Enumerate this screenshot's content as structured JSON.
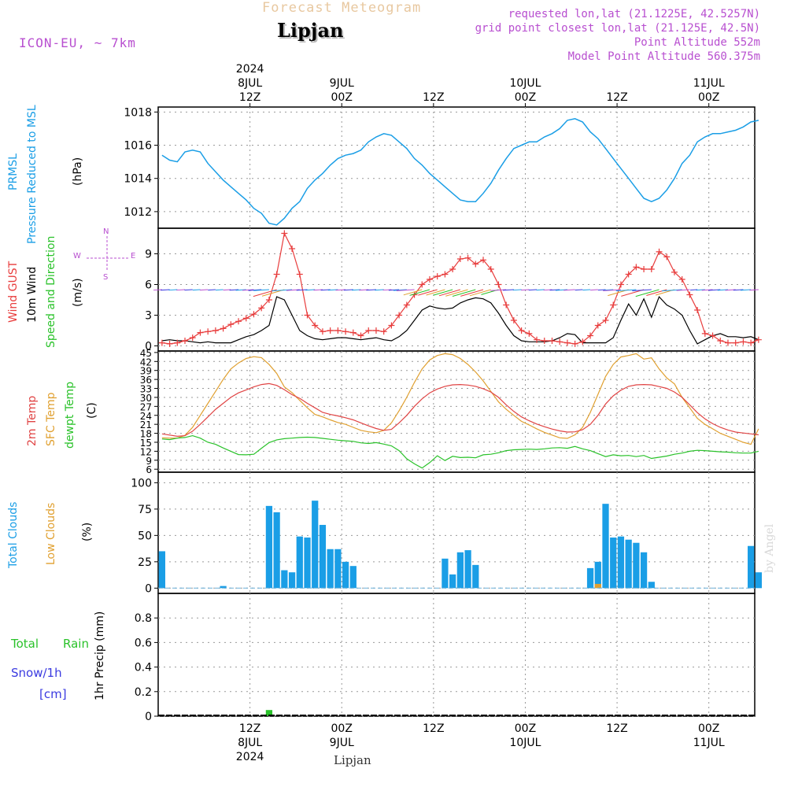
{
  "header": {
    "product": "Forecast Meteogram",
    "location": "Lipjan",
    "model": "ICON-EU, ~ 7km",
    "requested": "requested lon,lat (21.1225E, 42.5257N)",
    "closest": "grid point closest lon,lat (21.125E, 42.5N)",
    "point_alt": "Point Altitude 552m",
    "model_alt": "Model Point Altitude 560.375m",
    "watermark": "by Angel",
    "footer_location": "Lipjan"
  },
  "colors": {
    "pressure": "#1a9ee6",
    "gust": "#e83c3c",
    "wind10": "#000000",
    "direction": "#2ac22a",
    "t2m": "#e04444",
    "sfc": "#e0a030",
    "dew": "#2ac22a",
    "clouds_total": "#1a9ee6",
    "clouds_low": "#e0a030",
    "rain": "#2ac22a",
    "snow": "#3a3ae0",
    "purple": "#b84fd0"
  },
  "time_axis": {
    "top_labels": [
      {
        "hour": 0,
        "lines": [
          "2024",
          "8JUL",
          "12Z"
        ]
      },
      {
        "hour": 12,
        "lines": [
          "9JUL",
          "00Z"
        ]
      },
      {
        "hour": 24,
        "lines": [
          "12Z"
        ]
      },
      {
        "hour": 36,
        "lines": [
          "10JUL",
          "00Z"
        ]
      },
      {
        "hour": 48,
        "lines": [
          "12Z"
        ]
      },
      {
        "hour": 60,
        "lines": [
          "11JUL",
          "00Z"
        ]
      }
    ],
    "bottom_labels": [
      {
        "hour": 0,
        "lines": [
          "12Z",
          "8JUL",
          "2024"
        ]
      },
      {
        "hour": 12,
        "lines": [
          "00Z",
          "9JUL"
        ]
      },
      {
        "hour": 24,
        "lines": [
          "12Z"
        ]
      },
      {
        "hour": 36,
        "lines": [
          "00Z",
          "10JUL"
        ]
      },
      {
        "hour": 48,
        "lines": [
          "12Z"
        ]
      },
      {
        "hour": 60,
        "lines": [
          "00Z",
          "11JUL"
        ]
      }
    ]
  },
  "panels": {
    "pressure": {
      "labels": [
        "PRMSL",
        "Pressure Reduced to MSL",
        "(hPa)"
      ],
      "ylim": [
        1011,
        1018.3
      ],
      "yticks": [
        1012,
        1014,
        1016,
        1018
      ]
    },
    "wind": {
      "labels": [
        "Wind GUST",
        "10m Wind",
        "Speed and Direction",
        "(m/s)"
      ],
      "compass": {
        "n": "N",
        "s": "S",
        "w": "W",
        "e": "E"
      },
      "ylim": [
        -0.5,
        11.5
      ],
      "yticks": [
        0,
        3,
        6,
        9
      ]
    },
    "temp": {
      "labels": [
        "2m Temp",
        "SFC Temp",
        "dewpt Temp",
        "(C)"
      ],
      "ylim": [
        5,
        45.5
      ],
      "yticks": [
        6,
        9,
        12,
        15,
        18,
        21,
        24,
        27,
        30,
        33,
        36,
        39,
        42,
        45
      ]
    },
    "clouds": {
      "labels": [
        "Total Clouds",
        "Low Clouds",
        "(%)"
      ],
      "ylim": [
        -5,
        110
      ],
      "yticks": [
        0,
        25,
        50,
        75,
        100
      ]
    },
    "precip": {
      "labels": [
        "Total",
        "Rain",
        "Snow/1h",
        "[cm]",
        "1hr Precip (mm)"
      ],
      "ylim": [
        0,
        1.0
      ],
      "yticks": [
        "0",
        "0.2",
        "0.4",
        "0.6",
        "0.8"
      ]
    }
  },
  "chart_data": [
    {
      "type": "line",
      "title": "PRMSL Pressure Reduced to MSL",
      "ylabel": "(hPa)",
      "x_start_hour": -11.5,
      "x_step_hours": 1,
      "series": [
        {
          "name": "PRMSL",
          "values": [
            1015.4,
            1015.1,
            1015.0,
            1015.6,
            1015.7,
            1015.6,
            1014.9,
            1014.4,
            1013.9,
            1013.5,
            1013.1,
            1012.7,
            1012.2,
            1011.9,
            1011.3,
            1011.2,
            1011.6,
            1012.2,
            1012.6,
            1013.4,
            1013.9,
            1014.3,
            1014.8,
            1015.2,
            1015.4,
            1015.5,
            1015.7,
            1016.2,
            1016.5,
            1016.7,
            1016.6,
            1016.2,
            1015.8,
            1015.2,
            1014.8,
            1014.3,
            1013.9,
            1013.5,
            1013.1,
            1012.7,
            1012.6,
            1012.6,
            1013.1,
            1013.7,
            1014.5,
            1015.2,
            1015.8,
            1016.0,
            1016.2,
            1016.2,
            1016.5,
            1016.7,
            1017.0,
            1017.5,
            1017.6,
            1017.4,
            1016.8,
            1016.4,
            1015.8,
            1015.2,
            1014.6,
            1014.0,
            1013.4,
            1012.8,
            1012.6,
            1012.8,
            1013.3,
            1014.0,
            1014.9,
            1015.4,
            1016.2,
            1016.5,
            1016.7,
            1016.7,
            1016.8,
            1016.9,
            1017.1,
            1017.4,
            1017.5
          ]
        }
      ]
    },
    {
      "type": "line",
      "title": "Wind GUST / 10m Wind",
      "ylabel": "(m/s)",
      "x_start_hour": -11.5,
      "x_step_hours": 1,
      "series": [
        {
          "name": "Wind GUST",
          "values": [
            0.3,
            0.2,
            0.3,
            0.5,
            0.8,
            1.3,
            1.4,
            1.5,
            1.7,
            2.1,
            2.4,
            2.7,
            3.1,
            3.7,
            4.5,
            7.0,
            11.0,
            9.5,
            7.0,
            3.0,
            2.0,
            1.4,
            1.5,
            1.5,
            1.4,
            1.3,
            1.0,
            1.5,
            1.5,
            1.4,
            2.0,
            3.0,
            4.0,
            5.0,
            6.0,
            6.5,
            6.8,
            7.0,
            7.5,
            8.5,
            8.6,
            8.0,
            8.4,
            7.5,
            6.0,
            4.0,
            2.5,
            1.5,
            1.2,
            0.6,
            0.5,
            0.5,
            0.4,
            0.3,
            0.2,
            0.4,
            1.0,
            2.0,
            2.5,
            4.0,
            6.0,
            7.0,
            7.7,
            7.5,
            7.5,
            9.2,
            8.7,
            7.2,
            6.5,
            5.0,
            3.5,
            1.2,
            1.0,
            0.5,
            0.3,
            0.3,
            0.4,
            0.3,
            0.6
          ]
        },
        {
          "name": "10m Wind",
          "values": [
            0.5,
            0.6,
            0.5,
            0.5,
            0.4,
            0.3,
            0.4,
            0.3,
            0.3,
            0.3,
            0.6,
            0.9,
            1.1,
            1.5,
            2.0,
            4.8,
            4.5,
            3.0,
            1.5,
            1.0,
            0.7,
            0.6,
            0.7,
            0.8,
            0.8,
            0.7,
            0.6,
            0.7,
            0.8,
            0.6,
            0.5,
            0.9,
            1.5,
            2.5,
            3.5,
            3.9,
            3.7,
            3.6,
            3.7,
            4.2,
            4.5,
            4.7,
            4.6,
            4.2,
            3.2,
            2.0,
            1.0,
            0.5,
            0.4,
            0.4,
            0.4,
            0.5,
            0.8,
            1.2,
            1.1,
            0.3,
            0.3,
            0.3,
            0.3,
            0.8,
            2.5,
            4.1,
            3.0,
            4.6,
            2.8,
            4.8,
            4.0,
            3.6,
            3.0,
            1.5,
            0.2,
            0.6,
            1.0,
            1.2,
            0.9,
            0.9,
            0.8,
            0.9,
            0.6
          ]
        }
      ]
    },
    {
      "type": "line",
      "title": "2m Temp / SFC Temp / dewpt Temp",
      "ylabel": "(C)",
      "x_start_hour": -11.5,
      "x_step_hours": 1,
      "series": [
        {
          "name": "2m Temp",
          "values": [
            17.8,
            17.4,
            17.0,
            17.2,
            18.7,
            21.0,
            23.5,
            26.0,
            28.0,
            30.0,
            31.5,
            32.5,
            33.5,
            34.3,
            34.6,
            34.0,
            32.6,
            30.9,
            29.7,
            28.0,
            26.5,
            25.0,
            24.3,
            23.8,
            23.2,
            22.5,
            21.5,
            20.5,
            19.6,
            19.0,
            19.3,
            21.5,
            24.0,
            27.0,
            29.5,
            31.5,
            32.8,
            33.7,
            34.2,
            34.3,
            34.1,
            33.7,
            32.9,
            31.8,
            30.0,
            27.5,
            25.3,
            23.5,
            22.2,
            21.1,
            20.2,
            19.4,
            18.8,
            18.4,
            18.5,
            19.2,
            21.0,
            24.0,
            27.8,
            30.5,
            32.4,
            33.7,
            34.2,
            34.3,
            34.2,
            33.6,
            33.0,
            31.8,
            30.0,
            27.5,
            24.9,
            22.8,
            21.2,
            20.0,
            19.1,
            18.4,
            18.1,
            17.8,
            17.5
          ]
        },
        {
          "name": "SFC Temp",
          "values": [
            16.5,
            16.4,
            16.4,
            17.3,
            20.0,
            24.0,
            28.0,
            32.0,
            36.0,
            39.5,
            41.5,
            43.0,
            43.6,
            43.3,
            41.0,
            38.0,
            33.5,
            31.6,
            29.0,
            26.5,
            24.3,
            23.5,
            22.5,
            21.6,
            21.0,
            20.0,
            19.0,
            18.5,
            18.2,
            19.0,
            21.5,
            25.5,
            30.0,
            35.0,
            39.5,
            42.5,
            44.0,
            44.6,
            44.3,
            43.0,
            41.0,
            38.5,
            35.5,
            32.0,
            28.5,
            26.0,
            24.0,
            22.0,
            20.8,
            19.5,
            18.3,
            17.4,
            16.5,
            16.3,
            17.5,
            20.0,
            25.0,
            31.0,
            37.0,
            41.0,
            43.5,
            44.0,
            44.6,
            42.8,
            43.2,
            39.5,
            36.5,
            34.5,
            30.0,
            26.5,
            23.0,
            21.0,
            19.5,
            18.0,
            17.0,
            16.0,
            15.0,
            14.3,
            19.5
          ]
        },
        {
          "name": "dewpt Temp",
          "values": [
            16.1,
            15.9,
            16.4,
            16.6,
            17.2,
            16.4,
            15.0,
            14.3,
            13.1,
            12.0,
            10.9,
            10.8,
            11.0,
            13.0,
            14.9,
            15.8,
            16.2,
            16.4,
            16.6,
            16.7,
            16.6,
            16.3,
            16.0,
            15.7,
            15.5,
            15.3,
            14.8,
            14.6,
            14.9,
            14.4,
            13.8,
            12.2,
            9.5,
            7.8,
            6.4,
            8.2,
            10.5,
            8.9,
            10.3,
            9.9,
            10.0,
            9.8,
            10.8,
            11.0,
            11.5,
            12.2,
            12.5,
            12.6,
            12.7,
            12.6,
            12.8,
            13.1,
            13.2,
            13.0,
            13.6,
            12.8,
            12.2,
            11.2,
            10.2,
            10.8,
            10.5,
            10.6,
            10.2,
            10.6,
            9.6,
            10.0,
            10.4,
            11.0,
            11.4,
            12.0,
            12.3,
            12.2,
            12.0,
            11.8,
            11.7,
            11.5,
            11.4,
            11.4,
            12.0
          ]
        }
      ]
    },
    {
      "type": "bar",
      "title": "Total Clouds / Low Clouds",
      "ylabel": "(%)",
      "x_start_hour": -11.5,
      "x_step_hours": 1,
      "series": [
        {
          "name": "Total Clouds",
          "values": [
            35,
            0,
            0,
            0,
            0,
            0,
            0,
            0,
            2,
            0,
            0,
            0,
            0,
            0,
            78,
            72,
            17,
            15,
            49,
            48,
            83,
            60,
            37,
            37,
            25,
            21,
            0,
            0,
            0,
            0,
            0,
            0,
            0,
            0,
            0,
            0,
            0,
            28,
            13,
            34,
            36,
            22,
            0,
            0,
            0,
            0,
            0,
            0,
            0,
            0,
            0,
            0,
            0,
            0,
            0,
            0,
            19,
            25,
            80,
            48,
            49,
            46,
            43,
            34,
            6,
            0,
            0,
            0,
            0,
            0,
            0,
            0,
            0,
            0,
            0,
            0,
            0,
            40,
            15
          ]
        },
        {
          "name": "Low Clouds",
          "values": [
            0,
            0,
            0,
            0,
            0,
            0,
            0,
            0,
            0,
            0,
            0,
            0,
            0,
            0,
            0,
            0,
            0,
            0,
            0,
            0,
            0,
            0,
            0,
            0,
            0,
            0,
            0,
            0,
            0,
            0,
            0,
            0,
            0,
            0,
            0,
            0,
            0,
            0,
            0,
            0,
            0,
            0,
            0,
            0,
            0,
            0,
            0,
            0,
            0,
            0,
            0,
            0,
            0,
            0,
            0,
            0,
            0,
            4,
            0,
            0,
            0,
            0,
            0,
            0,
            0,
            0,
            0,
            0,
            0,
            0,
            0,
            0,
            0,
            0,
            0,
            0,
            0,
            0,
            0
          ]
        }
      ]
    },
    {
      "type": "bar",
      "title": "1hr Precip",
      "ylabel": "1hr Precip (mm)",
      "x_start_hour": -11.5,
      "x_step_hours": 1,
      "series": [
        {
          "name": "Total Rain",
          "values": [
            0,
            0,
            0,
            0,
            0,
            0,
            0,
            0,
            0,
            0,
            0,
            0,
            0,
            0,
            0.05,
            0,
            0,
            0,
            0,
            0,
            0,
            0,
            0,
            0,
            0,
            0,
            0,
            0,
            0,
            0,
            0,
            0,
            0,
            0,
            0,
            0,
            0,
            0,
            0,
            0,
            0,
            0,
            0,
            0,
            0,
            0,
            0,
            0,
            0,
            0,
            0,
            0,
            0,
            0,
            0,
            0,
            0,
            0,
            0,
            0,
            0,
            0,
            0,
            0,
            0,
            0,
            0,
            0,
            0,
            0,
            0,
            0,
            0,
            0,
            0,
            0,
            0,
            0,
            0
          ]
        }
      ]
    }
  ]
}
